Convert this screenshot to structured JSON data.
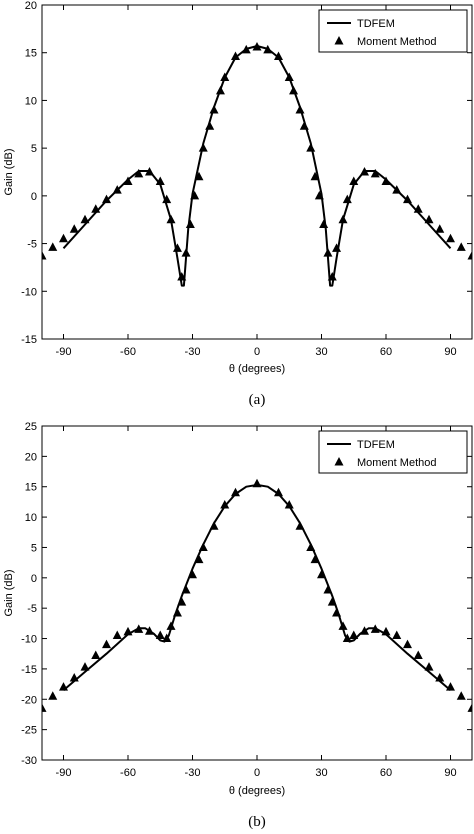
{
  "chart_data": [
    {
      "type": "line",
      "caption": "(a)",
      "xlabel": "θ (degrees)",
      "ylabel": "Gain (dB)",
      "xlim": [
        -100,
        100
      ],
      "ylim": [
        -15,
        20
      ],
      "xticks": [
        -90,
        -60,
        -30,
        0,
        30,
        60,
        90
      ],
      "yticks": [
        -15,
        -10,
        -5,
        0,
        5,
        10,
        15,
        20
      ],
      "grid": false,
      "legend_position": "top-right",
      "series": [
        {
          "name": "TDFEM",
          "style": "solid-line",
          "x": [
            -90,
            -80,
            -70,
            -60,
            -55,
            -50,
            -45,
            -40,
            -37,
            -35,
            -34,
            -32,
            -30,
            -25,
            -20,
            -15,
            -10,
            -5,
            0,
            5,
            10,
            15,
            20,
            25,
            30,
            32,
            34,
            35,
            37,
            40,
            45,
            50,
            55,
            60,
            70,
            80,
            90
          ],
          "y": [
            -5.5,
            -3.0,
            -0.5,
            1.7,
            2.6,
            2.6,
            1.2,
            -2.5,
            -6.5,
            -9.4,
            -9.4,
            -3.5,
            0.2,
            5.5,
            9.3,
            12.4,
            14.5,
            15.4,
            15.7,
            15.4,
            14.5,
            12.4,
            9.3,
            5.5,
            0.2,
            -3.5,
            -9.4,
            -9.4,
            -6.5,
            -2.5,
            1.2,
            2.6,
            2.6,
            1.7,
            -0.5,
            -3.0,
            -5.5
          ]
        },
        {
          "name": "Moment Method",
          "style": "triangle-markers",
          "x": [
            -100,
            -95,
            -90,
            -85,
            -80,
            -75,
            -70,
            -65,
            -60,
            -55,
            -50,
            -45,
            -42,
            -40,
            -37,
            -35,
            -33,
            -31,
            -29,
            -27,
            -25,
            -22,
            -20,
            -17,
            -15,
            -10,
            -5,
            0,
            5,
            10,
            15,
            17,
            20,
            22,
            25,
            27,
            29,
            31,
            33,
            35,
            37,
            40,
            42,
            45,
            50,
            55,
            60,
            65,
            70,
            75,
            80,
            85,
            90,
            95,
            100
          ],
          "y": [
            -6.3,
            -5.4,
            -4.5,
            -3.5,
            -2.5,
            -1.4,
            -0.4,
            0.6,
            1.5,
            2.3,
            2.5,
            1.5,
            -0.4,
            -2.5,
            -5.5,
            -8.5,
            -6.0,
            -3.0,
            0.0,
            2.0,
            5.0,
            7.3,
            9.0,
            11.0,
            12.4,
            14.6,
            15.3,
            15.6,
            15.3,
            14.6,
            12.4,
            11.0,
            9.0,
            7.3,
            5.0,
            2.0,
            0.0,
            -3.0,
            -6.0,
            -8.5,
            -5.5,
            -2.5,
            -0.4,
            1.5,
            2.5,
            2.3,
            1.5,
            0.6,
            -0.4,
            -1.4,
            -2.5,
            -3.5,
            -4.5,
            -5.4,
            -6.3
          ]
        }
      ]
    },
    {
      "type": "line",
      "caption": "(b)",
      "xlabel": "θ (degrees)",
      "ylabel": "Gain (dB)",
      "xlim": [
        -100,
        100
      ],
      "ylim": [
        -30,
        25
      ],
      "xticks": [
        -90,
        -60,
        -30,
        0,
        30,
        60,
        90
      ],
      "yticks": [
        -30,
        -25,
        -20,
        -15,
        -10,
        -5,
        0,
        5,
        10,
        15,
        20,
        25
      ],
      "grid": false,
      "legend_position": "top-right",
      "series": [
        {
          "name": "TDFEM",
          "style": "solid-line",
          "x": [
            -90,
            -80,
            -70,
            -60,
            -55,
            -52,
            -48,
            -45,
            -43,
            -41,
            -38,
            -35,
            -30,
            -25,
            -20,
            -15,
            -10,
            -5,
            0,
            5,
            10,
            15,
            20,
            25,
            30,
            35,
            38,
            41,
            43,
            45,
            48,
            52,
            55,
            60,
            70,
            80,
            90
          ],
          "y": [
            -18.5,
            -15.5,
            -12.5,
            -9.3,
            -8.3,
            -8.3,
            -9.2,
            -10.3,
            -10.5,
            -9.5,
            -6.0,
            -3.0,
            1.5,
            5.5,
            9.0,
            11.8,
            13.8,
            15.0,
            15.3,
            15.0,
            13.8,
            11.8,
            9.0,
            5.5,
            1.5,
            -3.0,
            -6.0,
            -9.5,
            -10.5,
            -10.3,
            -9.2,
            -8.3,
            -8.3,
            -9.3,
            -12.5,
            -15.5,
            -18.5
          ]
        },
        {
          "name": "Moment Method",
          "style": "triangle-markers",
          "x": [
            -100,
            -95,
            -90,
            -85,
            -80,
            -75,
            -70,
            -65,
            -60,
            -55,
            -50,
            -45,
            -42,
            -40,
            -37,
            -35,
            -33,
            -30,
            -27,
            -25,
            -20,
            -15,
            -10,
            0,
            10,
            15,
            20,
            25,
            27,
            30,
            33,
            35,
            37,
            40,
            42,
            45,
            50,
            55,
            60,
            65,
            70,
            75,
            80,
            85,
            90,
            95,
            100
          ],
          "y": [
            -21.5,
            -19.5,
            -18.0,
            -16.5,
            -14.7,
            -12.8,
            -11.0,
            -9.5,
            -8.9,
            -8.5,
            -8.8,
            -9.5,
            -10.0,
            -8.0,
            -5.8,
            -4.0,
            -2.0,
            0.5,
            3.0,
            5.0,
            8.5,
            12.0,
            14.0,
            15.5,
            14.0,
            12.0,
            8.5,
            5.0,
            3.0,
            0.5,
            -2.0,
            -4.0,
            -5.8,
            -8.0,
            -10.0,
            -9.5,
            -8.8,
            -8.5,
            -8.9,
            -9.5,
            -11.0,
            -12.8,
            -14.7,
            -16.5,
            -18.0,
            -19.5,
            -21.5
          ]
        }
      ]
    }
  ]
}
